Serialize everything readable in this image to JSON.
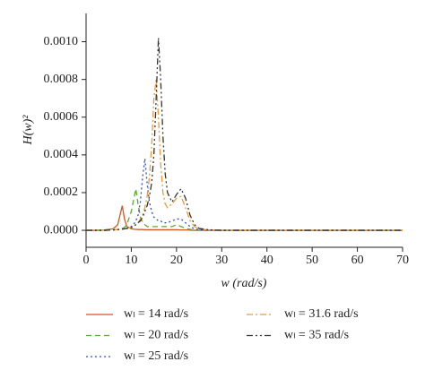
{
  "chart_data": {
    "type": "line",
    "xlabel": "w (rad/s)",
    "ylabel": "H(w)²",
    "x": [
      0,
      2,
      4,
      6,
      7,
      7.5,
      8,
      8.5,
      9,
      10,
      10.5,
      11,
      11.5,
      12,
      12.5,
      13,
      13.5,
      14,
      14.5,
      15,
      15.5,
      16,
      16.5,
      17,
      17.5,
      18,
      19,
      20,
      21,
      22,
      23,
      24,
      25,
      27,
      30,
      40,
      50,
      60,
      70
    ],
    "series": [
      {
        "name": "wₗ = 14 rad/s",
        "color": "#d4571f",
        "style": "solid",
        "values": [
          0,
          0,
          2e-06,
          8e-06,
          3e-05,
          8e-05,
          0.00013,
          6e-05,
          2e-05,
          8e-06,
          6e-06,
          5e-06,
          4e-06,
          4e-06,
          4e-06,
          3e-06,
          3e-06,
          3e-06,
          3e-06,
          3e-06,
          3e-06,
          3e-06,
          3e-06,
          3e-06,
          3e-06,
          3e-06,
          3e-06,
          3e-06,
          2e-06,
          2e-06,
          1e-06,
          0,
          0,
          0,
          0,
          0,
          0,
          0,
          0
        ]
      },
      {
        "name": "wₗ = 20 rad/s",
        "color": "#5aa832",
        "style": "dashed",
        "values": [
          0,
          0,
          0,
          2e-06,
          4e-06,
          6e-06,
          1e-05,
          1.5e-05,
          3e-05,
          0.0001,
          0.00016,
          0.00022,
          0.00014,
          7e-05,
          4e-05,
          3e-05,
          2e-05,
          2e-05,
          2e-05,
          2e-05,
          2e-05,
          2e-05,
          2e-05,
          2e-05,
          2e-05,
          2e-05,
          2e-05,
          3e-05,
          2e-05,
          1e-05,
          5e-06,
          2e-06,
          0,
          0,
          0,
          0,
          0,
          0,
          0
        ]
      },
      {
        "name": "wₗ = 25 rad/s",
        "color": "#2f4fb0",
        "style": "dotted",
        "values": [
          0,
          0,
          0,
          2e-06,
          4e-06,
          5e-06,
          6e-06,
          8e-06,
          1e-05,
          2e-05,
          3e-05,
          5e-05,
          8e-05,
          0.00015,
          0.00028,
          0.00038,
          0.00025,
          0.00015,
          0.0001,
          7e-05,
          6e-05,
          5e-05,
          5e-05,
          4e-05,
          4e-05,
          4e-05,
          5e-05,
          6e-05,
          6e-05,
          4e-05,
          2e-05,
          8e-06,
          3e-06,
          1e-06,
          0,
          0,
          0,
          0,
          0
        ]
      },
      {
        "name": "wₗ = 31.6 rad/s",
        "color": "#e89a3c",
        "style": "dashdot",
        "values": [
          0,
          0,
          0,
          2e-06,
          4e-06,
          5e-06,
          6e-06,
          8e-06,
          1e-05,
          1.5e-05,
          2e-05,
          3e-05,
          4e-05,
          6e-05,
          8e-05,
          0.00012,
          0.00018,
          0.00028,
          0.00045,
          0.0007,
          0.0008,
          0.0006,
          0.00035,
          0.0002,
          0.00014,
          0.00012,
          0.00014,
          0.00017,
          0.00018,
          0.00012,
          5e-05,
          2e-05,
          8e-06,
          2e-06,
          0,
          0,
          0,
          0,
          0
        ]
      },
      {
        "name": "wₗ = 35 rad/s",
        "color": "#333333",
        "style": "dashdotdot",
        "values": [
          0,
          0,
          0,
          2e-06,
          4e-06,
          5e-06,
          6e-06,
          8e-06,
          1e-05,
          1.5e-05,
          2e-05,
          3e-05,
          4e-05,
          5e-05,
          7e-05,
          0.0001,
          0.00013,
          0.00018,
          0.00025,
          0.0004,
          0.0007,
          0.00102,
          0.0008,
          0.0005,
          0.0003,
          0.0002,
          0.00015,
          0.00019,
          0.00022,
          0.00017,
          8e-05,
          3e-05,
          1e-05,
          3e-06,
          0,
          0,
          0,
          0,
          0
        ]
      }
    ],
    "xlim": [
      0,
      70
    ],
    "xticks": [
      0,
      10,
      20,
      30,
      40,
      50,
      60,
      70
    ],
    "ylim": [
      -9e-05,
      0.00115
    ],
    "yticks": [
      {
        "value": 0,
        "label": "0.0000"
      },
      {
        "value": 0.0002,
        "label": "0.0002"
      },
      {
        "value": 0.0004,
        "label": "0.0004"
      },
      {
        "value": 0.0006,
        "label": "0.0006"
      },
      {
        "value": 0.0008,
        "label": "0.0008"
      },
      {
        "value": 0.001,
        "label": "0.0010"
      }
    ],
    "grid": false,
    "legend": "bottom"
  }
}
